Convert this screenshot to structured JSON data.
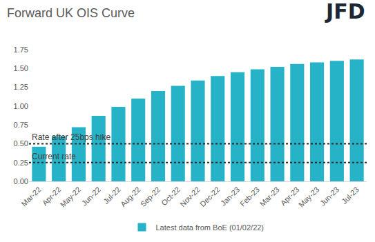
{
  "chart_data": {
    "type": "bar",
    "title": "Forward UK OIS Curve",
    "logo_text": "JFD",
    "categories": [
      "Mar-22",
      "Apr-22",
      "May-22",
      "Jun-22",
      "Jul-22",
      "Aug-22",
      "Sep-22",
      "Oct-22",
      "Nov-22",
      "Dec-22",
      "Jan-23",
      "Feb-23",
      "Mar-23",
      "Apr-23",
      "May-23",
      "Jun-23",
      "Jul-23"
    ],
    "series": [
      {
        "name": "Latest data from BoE (01/02/22)",
        "color": "#26b3c8",
        "values": [
          0.46,
          0.6,
          0.72,
          0.87,
          0.99,
          1.1,
          1.2,
          1.27,
          1.34,
          1.4,
          1.45,
          1.49,
          1.52,
          1.56,
          1.58,
          1.6,
          1.62
        ]
      }
    ],
    "reference_lines": [
      {
        "value": 0.5,
        "label": "Rate after 25bps hike",
        "line_style": "dot"
      },
      {
        "value": 0.25,
        "label": "Current rate",
        "line_style": "dot"
      }
    ],
    "ylim": [
      0,
      1.75
    ],
    "yticks": [
      {
        "value": 0,
        "label": "0.00"
      },
      0.25,
      {
        "value": 0.5,
        "label": "0.50"
      },
      0.75,
      {
        "value": 1,
        "label": "1.00"
      },
      1.25,
      {
        "value": 1.5,
        "label": "1.50"
      },
      1.75
    ],
    "grid": false,
    "legend": "bottom"
  }
}
